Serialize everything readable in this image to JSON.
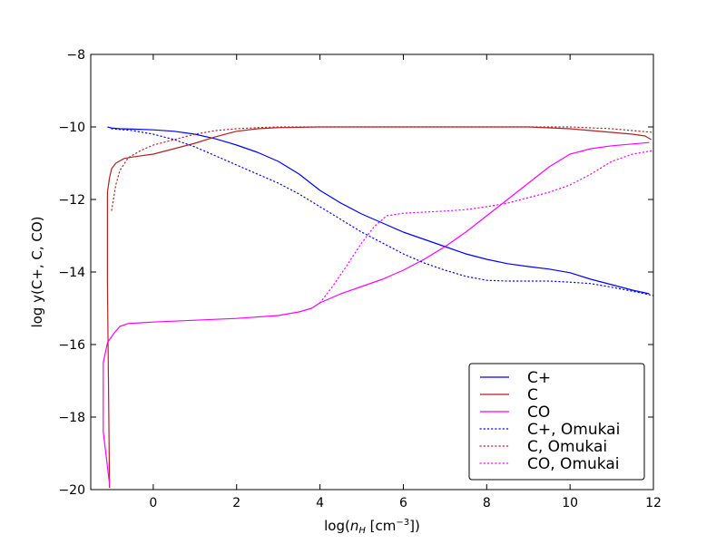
{
  "chart_data": {
    "type": "line",
    "title": "",
    "xlabel": "log(n_H [cm⁻³])",
    "xlabel_parts": {
      "prefix": "log(",
      "var": "n",
      "sub": "H",
      "unit": " [cm",
      "exp": "−3",
      "suffix": "])"
    },
    "ylabel": "log y(C+, C, CO)",
    "xlim": [
      -1.5,
      12
    ],
    "ylim": [
      -20,
      -8
    ],
    "xticks": [
      0,
      2,
      4,
      6,
      8,
      10,
      12
    ],
    "yticks": [
      -20,
      -18,
      -16,
      -14,
      -12,
      -10,
      -8
    ],
    "legend_position": "lower-right",
    "series": [
      {
        "name": "C+",
        "color": "#0000ff",
        "style": "solid",
        "x": [
          -1.1,
          -1.0,
          -0.8,
          -0.5,
          0.0,
          0.5,
          1.0,
          1.5,
          2.0,
          2.5,
          3.0,
          3.5,
          4.0,
          4.5,
          5.0,
          5.5,
          6.0,
          6.5,
          7.0,
          7.5,
          8.0,
          8.5,
          9.0,
          9.5,
          10.0,
          10.5,
          11.0,
          11.5,
          11.9
        ],
        "y": [
          -10.0,
          -10.03,
          -10.05,
          -10.06,
          -10.08,
          -10.12,
          -10.2,
          -10.33,
          -10.5,
          -10.7,
          -10.95,
          -11.3,
          -11.75,
          -12.1,
          -12.4,
          -12.65,
          -12.9,
          -13.1,
          -13.3,
          -13.5,
          -13.65,
          -13.77,
          -13.85,
          -13.92,
          -14.02,
          -14.2,
          -14.35,
          -14.5,
          -14.6
        ]
      },
      {
        "name": "C",
        "color": "#b22222",
        "style": "solid",
        "x": [
          -1.05,
          -1.1,
          -1.1,
          -1.1,
          -1.05,
          -1.0,
          -0.9,
          -0.7,
          -0.5,
          0.0,
          0.5,
          1.0,
          1.5,
          2.0,
          2.5,
          3.0,
          3.5,
          4.0,
          5.0,
          6.0,
          7.0,
          8.0,
          9.0,
          10.0,
          10.5,
          11.0,
          11.5,
          11.8,
          11.95
        ],
        "y": [
          -19.95,
          -14.3,
          -13.8,
          -11.8,
          -11.4,
          -11.15,
          -11.0,
          -10.87,
          -10.83,
          -10.75,
          -10.6,
          -10.45,
          -10.27,
          -10.12,
          -10.05,
          -10.02,
          -10.01,
          -10.0,
          -10.0,
          -10.0,
          -10.0,
          -10.0,
          -10.0,
          -10.05,
          -10.1,
          -10.15,
          -10.2,
          -10.25,
          -10.35
        ]
      },
      {
        "name": "CO",
        "color": "#ff00ff",
        "style": "solid",
        "x": [
          -1.05,
          -1.2,
          -1.2,
          -1.1,
          -0.95,
          -0.8,
          -0.6,
          -0.3,
          0.0,
          1.0,
          2.0,
          3.0,
          3.5,
          3.8,
          4.0,
          4.5,
          5.0,
          5.5,
          6.0,
          6.5,
          7.0,
          7.5,
          8.0,
          8.5,
          9.0,
          9.5,
          10.0,
          10.5,
          11.0,
          11.5,
          11.9
        ],
        "y": [
          -19.85,
          -18.4,
          -16.5,
          -15.95,
          -15.7,
          -15.5,
          -15.42,
          -15.4,
          -15.38,
          -15.33,
          -15.28,
          -15.2,
          -15.1,
          -15.0,
          -14.85,
          -14.6,
          -14.4,
          -14.2,
          -13.95,
          -13.65,
          -13.3,
          -12.9,
          -12.45,
          -12.0,
          -11.55,
          -11.1,
          -10.75,
          -10.6,
          -10.52,
          -10.47,
          -10.43
        ]
      },
      {
        "name": "C+, Omukai",
        "color": "#0000ff",
        "style": "dotted",
        "x": [
          -1.0,
          -0.5,
          0.0,
          0.5,
          1.0,
          1.5,
          2.0,
          2.5,
          3.0,
          3.5,
          4.0,
          4.5,
          5.0,
          5.5,
          6.0,
          6.5,
          7.0,
          7.5,
          8.0,
          8.5,
          9.0,
          9.5,
          10.0,
          10.5,
          11.0,
          11.5,
          12.0
        ],
        "y": [
          -10.05,
          -10.1,
          -10.2,
          -10.35,
          -10.55,
          -10.8,
          -11.05,
          -11.3,
          -11.55,
          -11.85,
          -12.2,
          -12.55,
          -12.9,
          -13.2,
          -13.5,
          -13.75,
          -13.95,
          -14.12,
          -14.23,
          -14.25,
          -14.25,
          -14.25,
          -14.28,
          -14.32,
          -14.42,
          -14.53,
          -14.65
        ]
      },
      {
        "name": "C, Omukai",
        "color": "#b22222",
        "style": "dotted",
        "x": [
          -1.0,
          -0.9,
          -0.8,
          -0.6,
          -0.3,
          0.0,
          0.5,
          1.0,
          1.5,
          2.0,
          2.5,
          3.0,
          4.0,
          5.0,
          6.0,
          7.0,
          8.0,
          9.0,
          10.0,
          11.0,
          12.0
        ],
        "y": [
          -12.3,
          -11.6,
          -11.2,
          -10.85,
          -10.65,
          -10.5,
          -10.35,
          -10.2,
          -10.1,
          -10.05,
          -10.02,
          -10.0,
          -10.0,
          -10.0,
          -10.0,
          -10.0,
          -10.0,
          -10.0,
          -10.0,
          -10.05,
          -10.15
        ]
      },
      {
        "name": "CO, Omukai",
        "color": "#ff00ff",
        "style": "dotted",
        "x": [
          4.0,
          4.3,
          4.6,
          5.0,
          5.3,
          5.6,
          6.0,
          6.5,
          7.0,
          7.5,
          8.0,
          8.5,
          9.0,
          9.5,
          10.0,
          10.5,
          11.0,
          11.5,
          12.0
        ],
        "y": [
          -14.85,
          -14.4,
          -13.9,
          -13.2,
          -12.75,
          -12.45,
          -12.38,
          -12.35,
          -12.32,
          -12.28,
          -12.2,
          -12.1,
          -11.95,
          -11.8,
          -11.6,
          -11.3,
          -10.95,
          -10.75,
          -10.65
        ]
      }
    ]
  }
}
